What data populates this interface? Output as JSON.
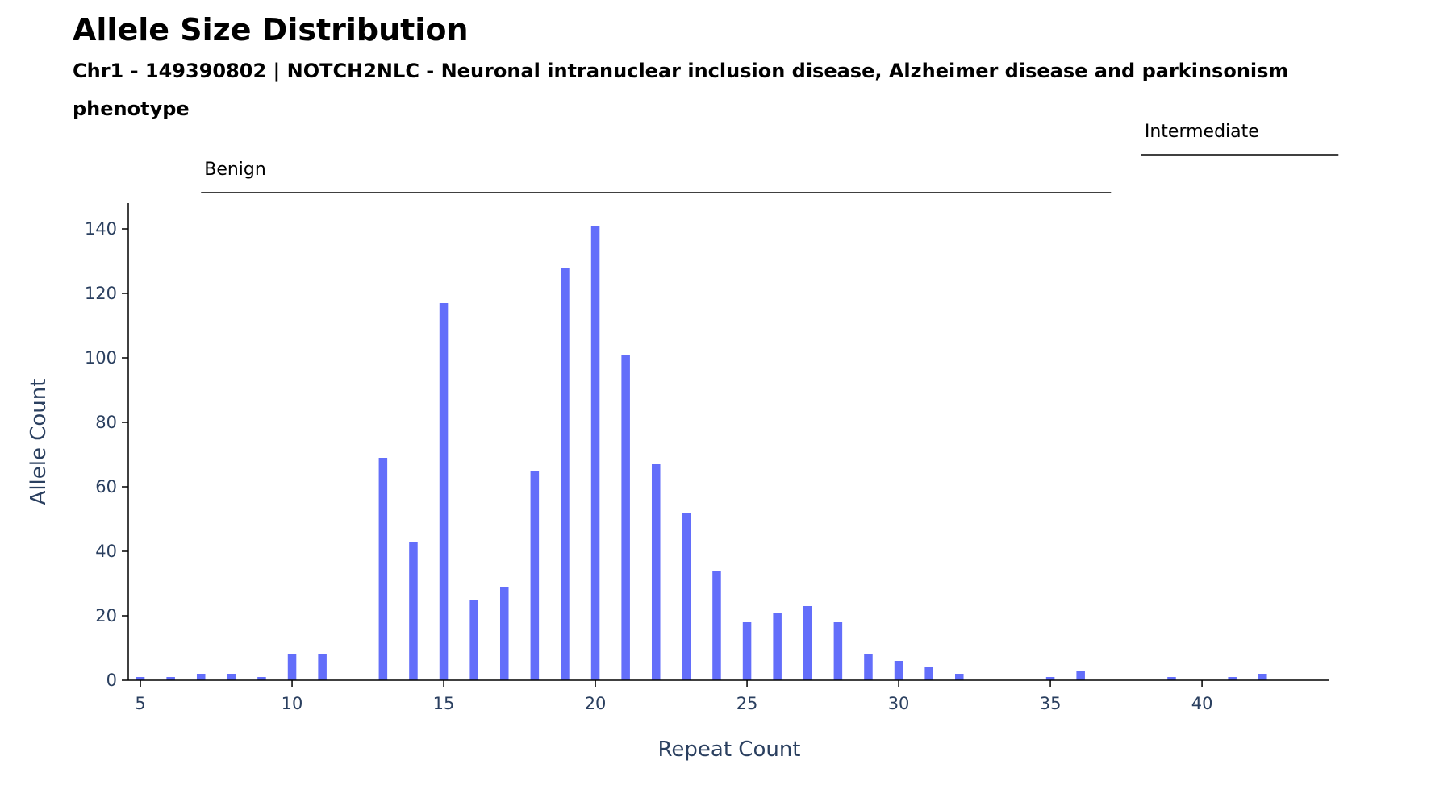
{
  "chart_data": {
    "type": "bar",
    "title": "Allele Size Distribution",
    "subtitle_line1": "Chr1 - 149390802 | NOTCH2NLC - Neuronal intranuclear inclusion disease, Alzheimer disease and parkinsonism",
    "subtitle_line2": "phenotype",
    "xlabel": "Repeat Count",
    "ylabel": "Allele Count",
    "xlim": [
      4.6,
      44.2
    ],
    "ylim": [
      0,
      148
    ],
    "x_ticks": [
      5,
      10,
      15,
      20,
      25,
      30,
      35,
      40
    ],
    "y_ticks": [
      0,
      20,
      40,
      60,
      80,
      100,
      120,
      140
    ],
    "bar_color": "#636efa",
    "x": [
      5,
      6,
      7,
      8,
      9,
      10,
      11,
      13,
      14,
      15,
      16,
      17,
      18,
      19,
      20,
      21,
      22,
      23,
      24,
      25,
      26,
      27,
      28,
      29,
      30,
      31,
      32,
      35,
      36,
      39,
      41,
      42
    ],
    "values": [
      1,
      1,
      2,
      2,
      1,
      8,
      8,
      69,
      43,
      117,
      25,
      29,
      65,
      128,
      141,
      101,
      67,
      52,
      34,
      18,
      21,
      23,
      18,
      8,
      6,
      4,
      2,
      1,
      3,
      1,
      1,
      2
    ],
    "ranges": [
      {
        "label": "Benign",
        "start": 7,
        "end": 37
      },
      {
        "label": "Intermediate",
        "start": 38,
        "end": 44.5
      }
    ]
  }
}
